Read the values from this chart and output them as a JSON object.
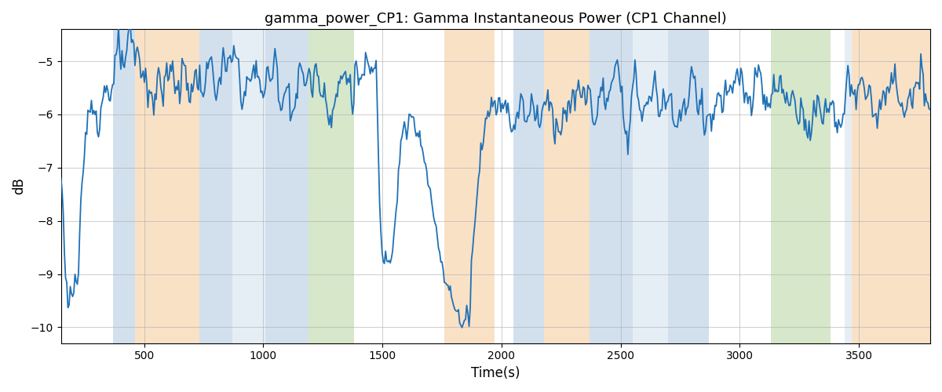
{
  "title": "gamma_power_CP1: Gamma Instantaneous Power (CP1 Channel)",
  "xlabel": "Time(s)",
  "ylabel": "dB",
  "xlim": [
    150,
    3800
  ],
  "ylim": [
    -10.3,
    -4.4
  ],
  "yticks": [
    -10,
    -9,
    -8,
    -7,
    -6,
    -5
  ],
  "xticks": [
    500,
    1000,
    1500,
    2000,
    2500,
    3000,
    3500
  ],
  "line_color": "#2171b5",
  "line_width": 1.3,
  "bands": [
    {
      "xmin": 370,
      "xmax": 460,
      "color": "#aec8e0",
      "alpha": 0.55
    },
    {
      "xmin": 460,
      "xmax": 730,
      "color": "#f5c998",
      "alpha": 0.55
    },
    {
      "xmin": 730,
      "xmax": 870,
      "color": "#aec8e0",
      "alpha": 0.55
    },
    {
      "xmin": 870,
      "xmax": 1010,
      "color": "#aec8e0",
      "alpha": 0.3
    },
    {
      "xmin": 1010,
      "xmax": 1190,
      "color": "#aec8e0",
      "alpha": 0.55
    },
    {
      "xmin": 1190,
      "xmax": 1380,
      "color": "#b5d5a0",
      "alpha": 0.55
    },
    {
      "xmin": 1760,
      "xmax": 1970,
      "color": "#f5c998",
      "alpha": 0.55
    },
    {
      "xmin": 2050,
      "xmax": 2180,
      "color": "#aec8e0",
      "alpha": 0.55
    },
    {
      "xmin": 2180,
      "xmax": 2370,
      "color": "#f5c998",
      "alpha": 0.55
    },
    {
      "xmin": 2370,
      "xmax": 2550,
      "color": "#aec8e0",
      "alpha": 0.55
    },
    {
      "xmin": 2550,
      "xmax": 2700,
      "color": "#aec8e0",
      "alpha": 0.3
    },
    {
      "xmin": 2700,
      "xmax": 2870,
      "color": "#aec8e0",
      "alpha": 0.55
    },
    {
      "xmin": 3130,
      "xmax": 3380,
      "color": "#b5d5a0",
      "alpha": 0.55
    },
    {
      "xmin": 3440,
      "xmax": 3470,
      "color": "#aec8e0",
      "alpha": 0.3
    },
    {
      "xmin": 3470,
      "xmax": 3800,
      "color": "#f5c998",
      "alpha": 0.55
    }
  ],
  "figsize": [
    12,
    5
  ],
  "dpi": 100
}
